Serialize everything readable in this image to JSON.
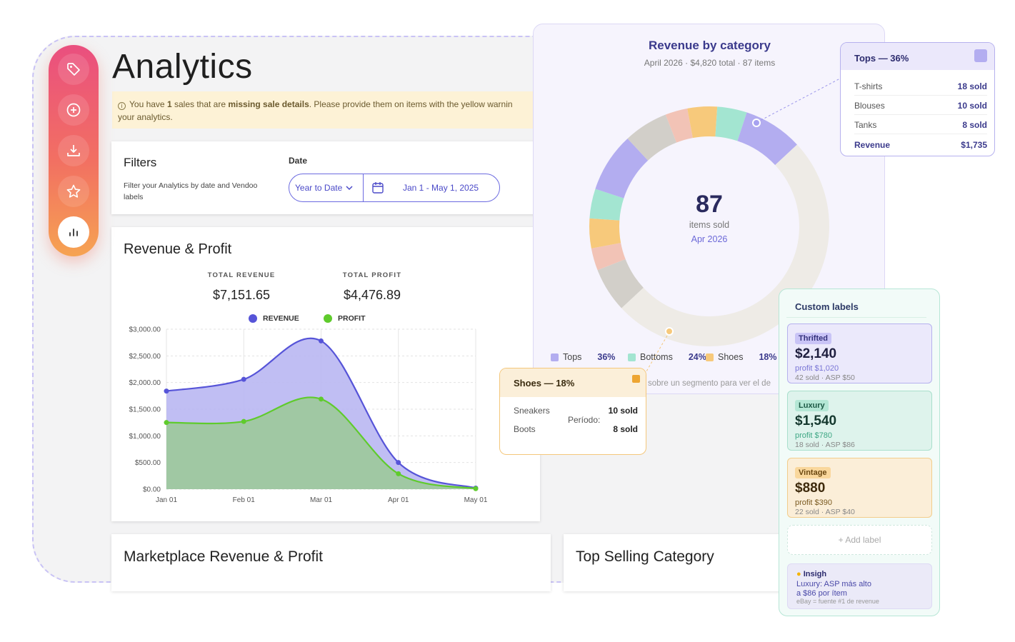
{
  "page": {
    "title": "Analytics"
  },
  "sidebar": {
    "items": [
      {
        "name": "tag-icon"
      },
      {
        "name": "plus-circle-icon"
      },
      {
        "name": "download-icon"
      },
      {
        "name": "star-icon"
      },
      {
        "name": "bar-chart-icon"
      }
    ]
  },
  "warning": {
    "pre": "You have ",
    "count": "1",
    "mid": " sales that are ",
    "bold": "missing sale details",
    "post": ". Please provide them on items with the yellow warnin",
    "line2": "your analytics."
  },
  "filters": {
    "title": "Filters",
    "description": "Filter your Analytics by date and Vendoo labels",
    "date_label": "Date",
    "range_option": "Year to Date",
    "date_range": "Jan 1 - May 1, 2025"
  },
  "revenue_profit": {
    "title": "Revenue & Profit",
    "total_revenue_label": "TOTAL REVENUE",
    "total_revenue": "$7,151.65",
    "total_profit_label": "TOTAL PROFIT",
    "total_profit": "$4,476.89",
    "legend_revenue": "REVENUE",
    "legend_profit": "PROFIT"
  },
  "chart_data": {
    "type": "area",
    "x": [
      "Jan 01",
      "Feb 01",
      "Mar 01",
      "Apr 01",
      "May 01"
    ],
    "x_index": [
      0,
      1,
      2,
      3,
      4
    ],
    "y_ticks": [
      "$0.00",
      "$500.00",
      "$1,000.00",
      "$1,500.00",
      "$2,000.00",
      "$2,500.00",
      "$3,000.00"
    ],
    "ylim": [
      0,
      3000
    ],
    "grid": true,
    "legend": "top-center",
    "series": [
      {
        "name": "REVENUE",
        "color": "#5654d8",
        "fill": "#b9b7f2",
        "values": [
          1840,
          2060,
          2780,
          500,
          20
        ]
      },
      {
        "name": "PROFIT",
        "color": "#5fcb2c",
        "fill": "#9cc99a",
        "values": [
          1250,
          1270,
          1690,
          290,
          10
        ]
      }
    ]
  },
  "bottom_cards": {
    "marketplace_title": "Marketplace Revenue & Profit",
    "top_selling_title": "Top Selling Category"
  },
  "donut": {
    "title": "Revenue by category",
    "subtitle": "April 2026 · $4,820 total · 87 items",
    "center_value": "87",
    "center_label": "items sold",
    "center_period": "Apr 2026",
    "hint": "sobre un segmento para ver el de",
    "legend": [
      {
        "label": "Tops",
        "pct": "36%",
        "color": "#b3adf0"
      },
      {
        "label": "Bottoms",
        "pct": "24%",
        "color": "#a3e5d1"
      },
      {
        "label": "Shoes",
        "pct": "18%",
        "color": "#f7c97b"
      }
    ],
    "segments": [
      {
        "color": "#d2cfc9",
        "value": 6
      },
      {
        "color": "#f2c3b6",
        "value": 3
      },
      {
        "color": "#f7c97b",
        "value": 4
      },
      {
        "color": "#a3e5d1",
        "value": 4
      },
      {
        "color": "#b3adf0",
        "value": 8
      },
      {
        "color": "#eeebe6",
        "value": 50
      },
      {
        "color": "#d2cfc9",
        "value": 6
      },
      {
        "color": "#f2c3b6",
        "value": 3
      },
      {
        "color": "#f7c97b",
        "value": 4
      },
      {
        "color": "#a3e5d1",
        "value": 4
      },
      {
        "color": "#b3adf0",
        "value": 8
      }
    ]
  },
  "tops_popup": {
    "title": "Tops — 36%",
    "rows": [
      {
        "label": "T-shirts",
        "value": "18 sold"
      },
      {
        "label": "Blouses",
        "value": "10 sold"
      },
      {
        "label": "Tanks",
        "value": "8 sold"
      }
    ],
    "revenue_label": "Revenue",
    "revenue_value": "$1,735"
  },
  "shoes_popup": {
    "title": "Shoes — 18%",
    "rows": [
      {
        "label": "Sneakers",
        "value": "10 sold"
      },
      {
        "label": "Boots",
        "value": "8 sold"
      }
    ],
    "period_label": "Período:"
  },
  "custom_labels": {
    "title": "Custom labels",
    "items": [
      {
        "badge": "Thrifted",
        "amount": "$2,140",
        "profit": "profit $1,020",
        "sold": "42 sold · ASP $50"
      },
      {
        "badge": "Luxury",
        "amount": "$1,540",
        "profit": "profit $780",
        "sold": "18 sold · ASP $86"
      },
      {
        "badge": "Vintage",
        "amount": "$880",
        "profit": "profit $390",
        "sold": "22 sold · ASP $40"
      }
    ],
    "add_label": "+ Add label",
    "insight_title": "Insigh",
    "insight_line1": "Luxury: ASP más alto",
    "insight_line2": "a $86 por ítem",
    "insight_line3": "eBay = fuente #1 de revenue"
  }
}
